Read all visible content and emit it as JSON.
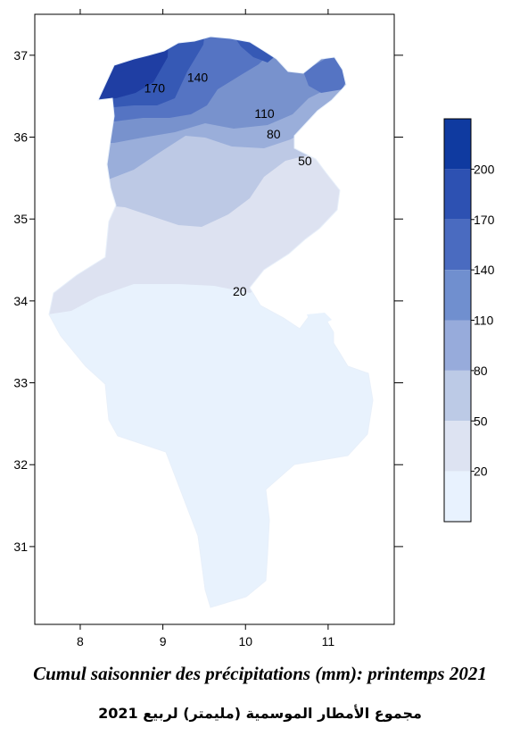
{
  "map": {
    "type": "filled-contour",
    "x_axis": {
      "ticks": [
        8,
        9,
        10,
        11
      ],
      "range": [
        7.45,
        11.8
      ]
    },
    "y_axis": {
      "ticks": [
        31,
        32,
        33,
        34,
        35,
        36,
        37
      ],
      "range": [
        30.05,
        37.5
      ]
    },
    "contour_labels": [
      {
        "text": "170",
        "lon": 8.9,
        "lat": 36.6
      },
      {
        "text": "140",
        "lon": 9.42,
        "lat": 36.73
      },
      {
        "text": "110",
        "lon": 10.23,
        "lat": 36.29
      },
      {
        "text": "80",
        "lon": 10.34,
        "lat": 36.04
      },
      {
        "text": "50",
        "lon": 10.72,
        "lat": 35.71
      },
      {
        "text": "20",
        "lon": 9.93,
        "lat": 34.12
      }
    ],
    "colors": {
      "band_20": "#e8f2fd",
      "band_50": "#dde2f1",
      "band_80": "#bdc9e5",
      "band_110": "#9aaeda",
      "band_140": "#7892cd",
      "band_170": "#5574c3",
      "band_200": "#3659b5",
      "band_max": "#1f3ea3"
    }
  },
  "legend": {
    "labels": [
      "200",
      "170",
      "140",
      "110",
      "80",
      "50",
      "20"
    ],
    "colors": [
      "#0f3aa0",
      "#2d51b2",
      "#4a6bc0",
      "#708fcf",
      "#97abdb",
      "#bccae6",
      "#dde3f2",
      "#e8f2fe"
    ]
  },
  "captions": {
    "french": "Cumul saisonnier des précipitations (mm): printemps 2021",
    "arabic": "مجموع الأمطار الموسمية (مليمتر) لربيع 2021"
  }
}
